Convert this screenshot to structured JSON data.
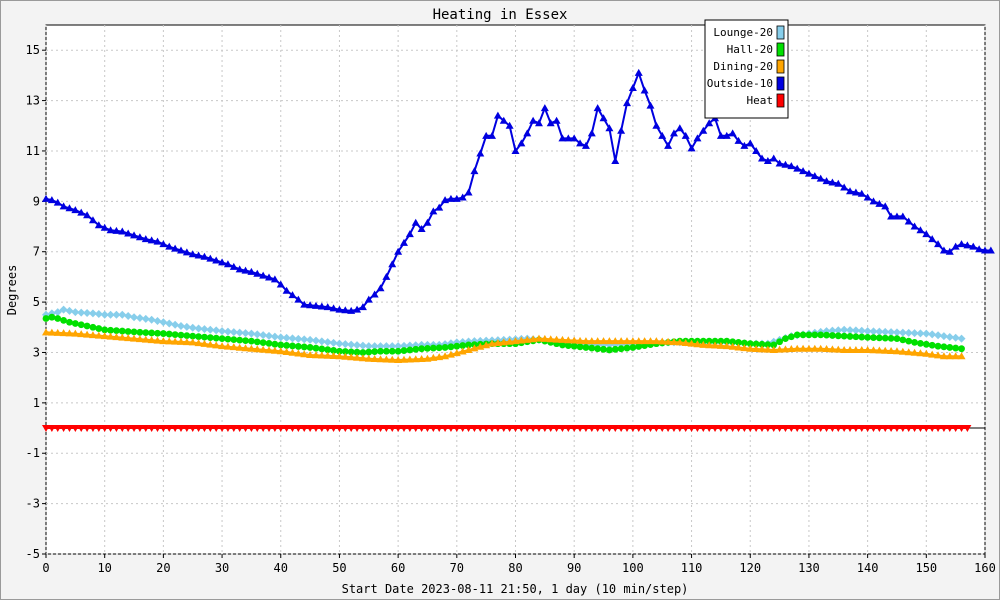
{
  "chart_data": {
    "type": "line",
    "title": "Heating in Essex",
    "xlabel": "Start Date 2023-08-11 21:50, 1 day (10 min/step)",
    "ylabel": "Degrees",
    "xlim": [
      0,
      160
    ],
    "ylim": [
      -5,
      16
    ],
    "x_ticks": [
      0,
      10,
      20,
      30,
      40,
      50,
      60,
      70,
      80,
      90,
      100,
      110,
      120,
      130,
      140,
      150,
      160
    ],
    "y_ticks": [
      -5,
      -3,
      -1,
      1,
      3,
      5,
      7,
      9,
      11,
      13,
      15
    ],
    "grid": true,
    "legend_position": "top-right",
    "series": [
      {
        "name": "Lounge-20",
        "color": "#87ceeb",
        "marker": "diamond",
        "points": [
          [
            0,
            4.5
          ],
          [
            2,
            4.6
          ],
          [
            3,
            4.7
          ],
          [
            5,
            4.6
          ],
          [
            8,
            4.55
          ],
          [
            10,
            4.5
          ],
          [
            13,
            4.5
          ],
          [
            15,
            4.4
          ],
          [
            18,
            4.3
          ],
          [
            20,
            4.2
          ],
          [
            23,
            4.05
          ],
          [
            26,
            3.95
          ],
          [
            30,
            3.85
          ],
          [
            35,
            3.75
          ],
          [
            40,
            3.6
          ],
          [
            45,
            3.5
          ],
          [
            50,
            3.35
          ],
          [
            55,
            3.25
          ],
          [
            60,
            3.25
          ],
          [
            64,
            3.3
          ],
          [
            67,
            3.3
          ],
          [
            70,
            3.4
          ],
          [
            73,
            3.45
          ],
          [
            78,
            3.5
          ],
          [
            82,
            3.55
          ],
          [
            86,
            3.45
          ],
          [
            90,
            3.35
          ],
          [
            96,
            3.3
          ],
          [
            100,
            3.35
          ],
          [
            106,
            3.4
          ],
          [
            110,
            3.4
          ],
          [
            115,
            3.4
          ],
          [
            120,
            3.35
          ],
          [
            123,
            3.35
          ],
          [
            125,
            3.5
          ],
          [
            127,
            3.65
          ],
          [
            130,
            3.75
          ],
          [
            133,
            3.85
          ],
          [
            136,
            3.9
          ],
          [
            140,
            3.85
          ],
          [
            145,
            3.8
          ],
          [
            150,
            3.75
          ],
          [
            153,
            3.65
          ],
          [
            156,
            3.55
          ]
        ]
      },
      {
        "name": "Hall-20",
        "color": "#00e000",
        "marker": "circle",
        "points": [
          [
            0,
            4.35
          ],
          [
            1,
            4.4
          ],
          [
            2,
            4.35
          ],
          [
            4,
            4.2
          ],
          [
            6,
            4.1
          ],
          [
            8,
            4.0
          ],
          [
            10,
            3.9
          ],
          [
            13,
            3.85
          ],
          [
            16,
            3.8
          ],
          [
            20,
            3.75
          ],
          [
            25,
            3.65
          ],
          [
            30,
            3.55
          ],
          [
            35,
            3.45
          ],
          [
            40,
            3.3
          ],
          [
            45,
            3.2
          ],
          [
            50,
            3.05
          ],
          [
            54,
            3.0
          ],
          [
            57,
            3.05
          ],
          [
            60,
            3.05
          ],
          [
            64,
            3.15
          ],
          [
            68,
            3.2
          ],
          [
            72,
            3.3
          ],
          [
            76,
            3.35
          ],
          [
            80,
            3.35
          ],
          [
            84,
            3.5
          ],
          [
            88,
            3.3
          ],
          [
            92,
            3.2
          ],
          [
            96,
            3.1
          ],
          [
            100,
            3.2
          ],
          [
            104,
            3.35
          ],
          [
            108,
            3.45
          ],
          [
            112,
            3.45
          ],
          [
            116,
            3.45
          ],
          [
            120,
            3.35
          ],
          [
            124,
            3.3
          ],
          [
            126,
            3.55
          ],
          [
            128,
            3.7
          ],
          [
            132,
            3.7
          ],
          [
            136,
            3.65
          ],
          [
            140,
            3.6
          ],
          [
            145,
            3.55
          ],
          [
            148,
            3.4
          ],
          [
            152,
            3.25
          ],
          [
            156,
            3.15
          ]
        ]
      },
      {
        "name": "Dining-20",
        "color": "#ffa500",
        "marker": "triangle-up",
        "points": [
          [
            0,
            3.8
          ],
          [
            5,
            3.75
          ],
          [
            10,
            3.65
          ],
          [
            15,
            3.55
          ],
          [
            20,
            3.45
          ],
          [
            25,
            3.4
          ],
          [
            30,
            3.25
          ],
          [
            35,
            3.15
          ],
          [
            40,
            3.05
          ],
          [
            45,
            2.9
          ],
          [
            50,
            2.85
          ],
          [
            55,
            2.75
          ],
          [
            60,
            2.7
          ],
          [
            65,
            2.75
          ],
          [
            68,
            2.85
          ],
          [
            72,
            3.1
          ],
          [
            76,
            3.35
          ],
          [
            80,
            3.45
          ],
          [
            84,
            3.55
          ],
          [
            88,
            3.5
          ],
          [
            92,
            3.45
          ],
          [
            96,
            3.45
          ],
          [
            100,
            3.45
          ],
          [
            104,
            3.45
          ],
          [
            108,
            3.4
          ],
          [
            112,
            3.3
          ],
          [
            116,
            3.25
          ],
          [
            120,
            3.15
          ],
          [
            124,
            3.1
          ],
          [
            128,
            3.15
          ],
          [
            132,
            3.15
          ],
          [
            136,
            3.1
          ],
          [
            140,
            3.1
          ],
          [
            145,
            3.05
          ],
          [
            150,
            2.95
          ],
          [
            153,
            2.85
          ],
          [
            156,
            2.85
          ]
        ]
      },
      {
        "name": "Outside-10",
        "color": "#0000e0",
        "marker": "triangle-up",
        "points": [
          [
            0,
            9.1
          ],
          [
            1,
            9.05
          ],
          [
            2,
            8.95
          ],
          [
            3,
            8.8
          ],
          [
            5,
            8.65
          ],
          [
            7,
            8.45
          ],
          [
            8,
            8.25
          ],
          [
            9,
            8.05
          ],
          [
            10,
            7.95
          ],
          [
            11,
            7.85
          ],
          [
            13,
            7.8
          ],
          [
            15,
            7.65
          ],
          [
            17,
            7.5
          ],
          [
            19,
            7.4
          ],
          [
            21,
            7.2
          ],
          [
            23,
            7.05
          ],
          [
            25,
            6.9
          ],
          [
            27,
            6.8
          ],
          [
            29,
            6.65
          ],
          [
            31,
            6.5
          ],
          [
            33,
            6.3
          ],
          [
            35,
            6.2
          ],
          [
            37,
            6.05
          ],
          [
            39,
            5.9
          ],
          [
            40,
            5.7
          ],
          [
            41,
            5.45
          ],
          [
            43,
            5.1
          ],
          [
            44,
            4.9
          ],
          [
            46,
            4.85
          ],
          [
            48,
            4.8
          ],
          [
            49,
            4.75
          ],
          [
            50,
            4.7
          ],
          [
            52,
            4.65
          ],
          [
            53,
            4.7
          ],
          [
            54,
            4.8
          ],
          [
            55,
            5.1
          ],
          [
            56,
            5.3
          ],
          [
            57,
            5.55
          ],
          [
            58,
            6.0
          ],
          [
            59,
            6.5
          ],
          [
            60,
            7.0
          ],
          [
            61,
            7.35
          ],
          [
            62,
            7.7
          ],
          [
            63,
            8.15
          ],
          [
            64,
            7.9
          ],
          [
            65,
            8.15
          ],
          [
            66,
            8.6
          ],
          [
            67,
            8.75
          ],
          [
            68,
            9.05
          ],
          [
            69,
            9.1
          ],
          [
            70,
            9.1
          ],
          [
            71,
            9.15
          ],
          [
            72,
            9.35
          ],
          [
            73,
            10.2
          ],
          [
            74,
            10.9
          ],
          [
            75,
            11.6
          ],
          [
            76,
            11.6
          ],
          [
            77,
            12.4
          ],
          [
            78,
            12.2
          ],
          [
            79,
            12.0
          ],
          [
            80,
            11.0
          ],
          [
            81,
            11.3
          ],
          [
            82,
            11.7
          ],
          [
            83,
            12.2
          ],
          [
            84,
            12.1
          ],
          [
            85,
            12.7
          ],
          [
            86,
            12.1
          ],
          [
            87,
            12.2
          ],
          [
            88,
            11.5
          ],
          [
            89,
            11.5
          ],
          [
            90,
            11.5
          ],
          [
            91,
            11.3
          ],
          [
            92,
            11.2
          ],
          [
            93,
            11.7
          ],
          [
            94,
            12.7
          ],
          [
            95,
            12.3
          ],
          [
            96,
            11.9
          ],
          [
            97,
            10.6
          ],
          [
            98,
            11.8
          ],
          [
            99,
            12.9
          ],
          [
            100,
            13.5
          ],
          [
            101,
            14.1
          ],
          [
            102,
            13.4
          ],
          [
            103,
            12.8
          ],
          [
            104,
            12.0
          ],
          [
            105,
            11.6
          ],
          [
            106,
            11.2
          ],
          [
            107,
            11.7
          ],
          [
            108,
            11.9
          ],
          [
            109,
            11.6
          ],
          [
            110,
            11.1
          ],
          [
            111,
            11.5
          ],
          [
            112,
            11.8
          ],
          [
            113,
            12.1
          ],
          [
            114,
            12.3
          ],
          [
            115,
            11.6
          ],
          [
            116,
            11.6
          ],
          [
            117,
            11.7
          ],
          [
            118,
            11.4
          ],
          [
            119,
            11.2
          ],
          [
            120,
            11.3
          ],
          [
            121,
            11.0
          ],
          [
            122,
            10.7
          ],
          [
            123,
            10.6
          ],
          [
            124,
            10.7
          ],
          [
            125,
            10.5
          ],
          [
            127,
            10.4
          ],
          [
            129,
            10.2
          ],
          [
            131,
            10.0
          ],
          [
            133,
            9.8
          ],
          [
            135,
            9.7
          ],
          [
            137,
            9.4
          ],
          [
            139,
            9.3
          ],
          [
            141,
            9.0
          ],
          [
            143,
            8.8
          ],
          [
            144,
            8.4
          ],
          [
            146,
            8.4
          ],
          [
            148,
            8.0
          ],
          [
            150,
            7.7
          ],
          [
            152,
            7.3
          ],
          [
            153,
            7.05
          ],
          [
            154,
            7.0
          ],
          [
            155,
            7.2
          ],
          [
            156,
            7.3
          ],
          [
            158,
            7.2
          ],
          [
            159,
            7.1
          ],
          [
            160,
            7.05
          ],
          [
            161,
            7.05
          ]
        ]
      },
      {
        "name": "Heat",
        "color": "#ff0000",
        "marker": "triangle-down",
        "points": [
          [
            0,
            0
          ],
          [
            157,
            0
          ]
        ]
      }
    ]
  }
}
